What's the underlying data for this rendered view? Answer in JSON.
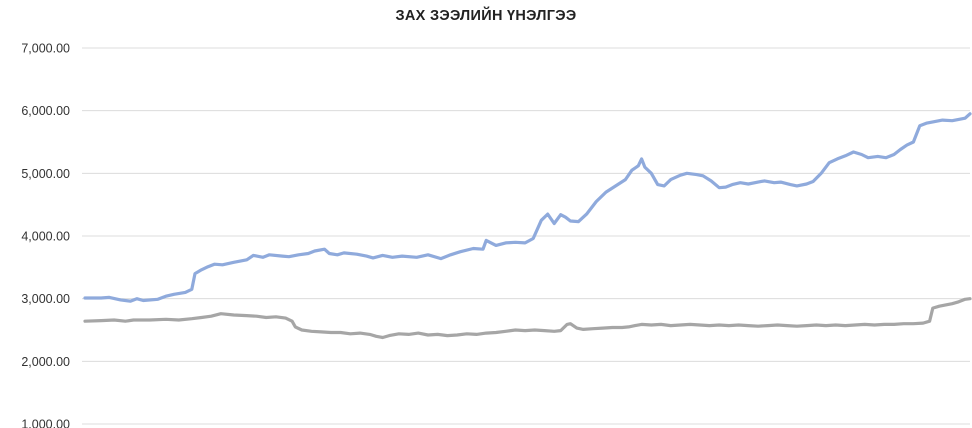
{
  "chart_data": {
    "type": "line",
    "title": "ЗАХ ЗЭЭЛИЙН ҮНЭЛГЭЭ",
    "xlabel": "",
    "ylabel": "",
    "ylim": [
      1000,
      7000
    ],
    "yticks": [
      1000,
      2000,
      3000,
      4000,
      5000,
      6000,
      7000
    ],
    "ytick_labels": [
      "1,000.00",
      "2,000.00",
      "3,000.00",
      "4,000.00",
      "5,000.00",
      "6,000.00",
      "7,000.00"
    ],
    "grid": true,
    "legend": "none",
    "x_count": 300,
    "series": [
      {
        "color": "#8faadc",
        "points": [
          [
            0,
            3010
          ],
          [
            10,
            3010
          ],
          [
            15,
            3020
          ],
          [
            22,
            2980
          ],
          [
            28,
            2960
          ],
          [
            32,
            3000
          ],
          [
            36,
            2970
          ],
          [
            45,
            2990
          ],
          [
            50,
            3040
          ],
          [
            55,
            3070
          ],
          [
            62,
            3100
          ],
          [
            66,
            3150
          ],
          [
            68,
            3400
          ],
          [
            72,
            3460
          ],
          [
            76,
            3510
          ],
          [
            80,
            3550
          ],
          [
            85,
            3540
          ],
          [
            92,
            3580
          ],
          [
            100,
            3620
          ],
          [
            104,
            3690
          ],
          [
            110,
            3660
          ],
          [
            114,
            3700
          ],
          [
            122,
            3680
          ],
          [
            126,
            3670
          ],
          [
            132,
            3700
          ],
          [
            138,
            3720
          ],
          [
            142,
            3760
          ],
          [
            148,
            3790
          ],
          [
            151,
            3720
          ],
          [
            156,
            3700
          ],
          [
            160,
            3730
          ],
          [
            168,
            3710
          ],
          [
            174,
            3680
          ],
          [
            178,
            3650
          ],
          [
            184,
            3690
          ],
          [
            190,
            3660
          ],
          [
            196,
            3680
          ],
          [
            205,
            3660
          ],
          [
            212,
            3700
          ],
          [
            220,
            3640
          ],
          [
            226,
            3700
          ],
          [
            232,
            3750
          ],
          [
            240,
            3800
          ],
          [
            246,
            3790
          ],
          [
            248,
            3930
          ],
          [
            254,
            3850
          ],
          [
            260,
            3890
          ],
          [
            266,
            3900
          ],
          [
            272,
            3890
          ],
          [
            277,
            3960
          ],
          [
            282,
            4250
          ],
          [
            286,
            4350
          ],
          [
            290,
            4200
          ],
          [
            294,
            4340
          ],
          [
            297,
            4300
          ],
          [
            300,
            4240
          ],
          [
            305,
            4230
          ],
          [
            310,
            4350
          ],
          [
            316,
            4550
          ],
          [
            322,
            4700
          ],
          [
            328,
            4800
          ],
          [
            334,
            4900
          ],
          [
            338,
            5050
          ],
          [
            342,
            5120
          ],
          [
            344,
            5230
          ],
          [
            346,
            5100
          ],
          [
            350,
            5000
          ],
          [
            354,
            4820
          ],
          [
            358,
            4800
          ],
          [
            362,
            4900
          ],
          [
            368,
            4970
          ],
          [
            372,
            5000
          ],
          [
            378,
            4980
          ],
          [
            382,
            4960
          ],
          [
            387,
            4880
          ],
          [
            392,
            4770
          ],
          [
            396,
            4780
          ],
          [
            400,
            4820
          ],
          [
            405,
            4850
          ],
          [
            410,
            4830
          ],
          [
            416,
            4860
          ],
          [
            420,
            4880
          ],
          [
            426,
            4850
          ],
          [
            430,
            4860
          ],
          [
            436,
            4820
          ],
          [
            440,
            4800
          ],
          [
            446,
            4830
          ],
          [
            450,
            4870
          ],
          [
            455,
            5000
          ],
          [
            460,
            5170
          ],
          [
            465,
            5230
          ],
          [
            470,
            5280
          ],
          [
            475,
            5340
          ],
          [
            480,
            5300
          ],
          [
            484,
            5250
          ],
          [
            490,
            5270
          ],
          [
            495,
            5250
          ],
          [
            500,
            5300
          ],
          [
            504,
            5380
          ],
          [
            508,
            5450
          ],
          [
            512,
            5500
          ],
          [
            516,
            5760
          ],
          [
            520,
            5800
          ],
          [
            524,
            5820
          ],
          [
            530,
            5850
          ],
          [
            536,
            5840
          ],
          [
            540,
            5860
          ],
          [
            544,
            5880
          ],
          [
            547,
            5950
          ]
        ]
      },
      {
        "color": "#a6a6a6",
        "points": [
          [
            0,
            2640
          ],
          [
            10,
            2650
          ],
          [
            18,
            2660
          ],
          [
            25,
            2640
          ],
          [
            30,
            2660
          ],
          [
            40,
            2660
          ],
          [
            50,
            2670
          ],
          [
            58,
            2660
          ],
          [
            66,
            2680
          ],
          [
            72,
            2700
          ],
          [
            78,
            2720
          ],
          [
            84,
            2760
          ],
          [
            92,
            2740
          ],
          [
            100,
            2730
          ],
          [
            106,
            2720
          ],
          [
            112,
            2700
          ],
          [
            118,
            2710
          ],
          [
            124,
            2690
          ],
          [
            128,
            2640
          ],
          [
            130,
            2550
          ],
          [
            134,
            2500
          ],
          [
            140,
            2480
          ],
          [
            146,
            2470
          ],
          [
            152,
            2460
          ],
          [
            158,
            2460
          ],
          [
            164,
            2440
          ],
          [
            170,
            2450
          ],
          [
            176,
            2430
          ],
          [
            180,
            2400
          ],
          [
            184,
            2380
          ],
          [
            188,
            2410
          ],
          [
            194,
            2440
          ],
          [
            200,
            2430
          ],
          [
            206,
            2450
          ],
          [
            212,
            2420
          ],
          [
            218,
            2430
          ],
          [
            224,
            2410
          ],
          [
            230,
            2420
          ],
          [
            236,
            2440
          ],
          [
            242,
            2430
          ],
          [
            248,
            2450
          ],
          [
            254,
            2460
          ],
          [
            260,
            2480
          ],
          [
            266,
            2500
          ],
          [
            272,
            2490
          ],
          [
            278,
            2500
          ],
          [
            284,
            2490
          ],
          [
            290,
            2480
          ],
          [
            294,
            2490
          ],
          [
            298,
            2590
          ],
          [
            300,
            2600
          ],
          [
            304,
            2530
          ],
          [
            308,
            2510
          ],
          [
            314,
            2520
          ],
          [
            320,
            2530
          ],
          [
            326,
            2540
          ],
          [
            332,
            2540
          ],
          [
            336,
            2550
          ],
          [
            340,
            2570
          ],
          [
            344,
            2590
          ],
          [
            350,
            2580
          ],
          [
            356,
            2590
          ],
          [
            362,
            2570
          ],
          [
            368,
            2580
          ],
          [
            374,
            2590
          ],
          [
            380,
            2580
          ],
          [
            386,
            2570
          ],
          [
            392,
            2580
          ],
          [
            398,
            2570
          ],
          [
            404,
            2580
          ],
          [
            410,
            2570
          ],
          [
            416,
            2560
          ],
          [
            422,
            2570
          ],
          [
            428,
            2580
          ],
          [
            434,
            2570
          ],
          [
            440,
            2560
          ],
          [
            446,
            2570
          ],
          [
            452,
            2580
          ],
          [
            458,
            2570
          ],
          [
            464,
            2580
          ],
          [
            470,
            2570
          ],
          [
            476,
            2580
          ],
          [
            482,
            2590
          ],
          [
            488,
            2580
          ],
          [
            494,
            2590
          ],
          [
            500,
            2590
          ],
          [
            506,
            2600
          ],
          [
            512,
            2600
          ],
          [
            518,
            2610
          ],
          [
            522,
            2640
          ],
          [
            524,
            2850
          ],
          [
            528,
            2880
          ],
          [
            532,
            2900
          ],
          [
            536,
            2920
          ],
          [
            540,
            2950
          ],
          [
            544,
            2990
          ],
          [
            547,
            3000
          ]
        ]
      }
    ]
  }
}
